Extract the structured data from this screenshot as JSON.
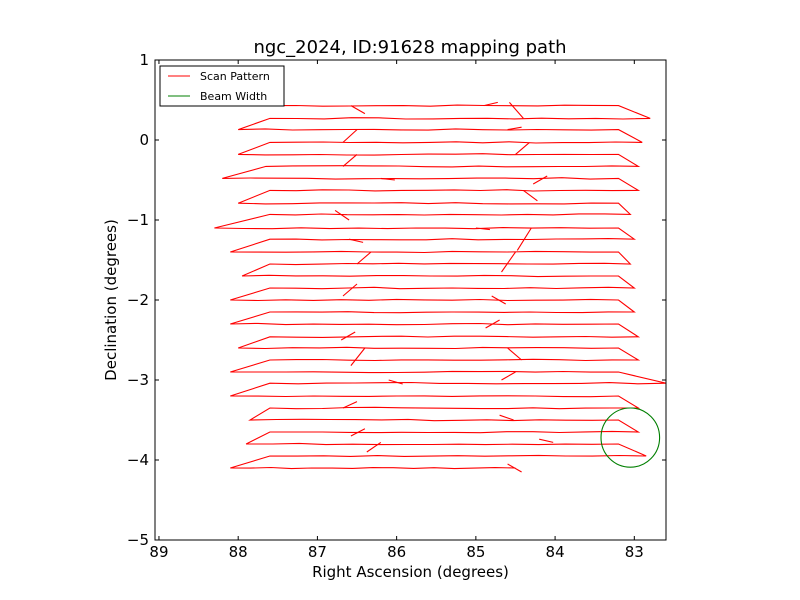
{
  "chart_data": {
    "type": "line",
    "title": "ngc_2024, ID:91628 mapping path",
    "xlabel": "Right Ascension (degrees)",
    "ylabel": "Declination (degrees)",
    "xlim": [
      89.05,
      82.6
    ],
    "ylim": [
      -5,
      1
    ],
    "x_inverted": true,
    "xticks": [
      89,
      88,
      87,
      86,
      85,
      84,
      83
    ],
    "yticks": [
      1,
      0,
      -1,
      -2,
      -3,
      -4,
      -5
    ],
    "ytick_labels": [
      "1",
      "0",
      "−1",
      "−2",
      "−3",
      "−4",
      "−5"
    ],
    "grid": false,
    "legend_position": "top-left",
    "series": [
      {
        "name": "Scan Pattern",
        "color": "#ff0000",
        "type": "line",
        "scan_rows": [
          {
            "dec": 0.43,
            "ra_start": 87.95,
            "ra_end": 83.2
          },
          {
            "dec": 0.27,
            "ra_start": 87.6,
            "ra_end": 82.8
          },
          {
            "dec": 0.13,
            "ra_start": 88.0,
            "ra_end": 83.2
          },
          {
            "dec": -0.03,
            "ra_start": 87.6,
            "ra_end": 82.9
          },
          {
            "dec": -0.18,
            "ra_start": 88.0,
            "ra_end": 83.2
          },
          {
            "dec": -0.33,
            "ra_start": 87.65,
            "ra_end": 82.95
          },
          {
            "dec": -0.48,
            "ra_start": 88.2,
            "ra_end": 83.2
          },
          {
            "dec": -0.63,
            "ra_start": 87.6,
            "ra_end": 82.95
          },
          {
            "dec": -0.79,
            "ra_start": 88.0,
            "ra_end": 83.2
          },
          {
            "dec": -0.93,
            "ra_start": 87.6,
            "ra_end": 83.05
          },
          {
            "dec": -1.1,
            "ra_start": 88.3,
            "ra_end": 83.2
          },
          {
            "dec": -1.24,
            "ra_start": 87.6,
            "ra_end": 83.0
          },
          {
            "dec": -1.4,
            "ra_start": 88.1,
            "ra_end": 83.2
          },
          {
            "dec": -1.55,
            "ra_start": 87.6,
            "ra_end": 83.05
          },
          {
            "dec": -1.7,
            "ra_start": 87.95,
            "ra_end": 83.2
          },
          {
            "dec": -1.85,
            "ra_start": 87.6,
            "ra_end": 83.0
          },
          {
            "dec": -2.0,
            "ra_start": 88.1,
            "ra_end": 83.2
          },
          {
            "dec": -2.15,
            "ra_start": 87.6,
            "ra_end": 83.0
          },
          {
            "dec": -2.3,
            "ra_start": 88.1,
            "ra_end": 83.2
          },
          {
            "dec": -2.46,
            "ra_start": 87.6,
            "ra_end": 82.95
          },
          {
            "dec": -2.6,
            "ra_start": 88.0,
            "ra_end": 83.2
          },
          {
            "dec": -2.75,
            "ra_start": 87.6,
            "ra_end": 82.95
          },
          {
            "dec": -2.9,
            "ra_start": 88.1,
            "ra_end": 83.2
          },
          {
            "dec": -3.04,
            "ra_start": 87.6,
            "ra_end": 82.6
          },
          {
            "dec": -3.2,
            "ra_start": 88.1,
            "ra_end": 83.2
          },
          {
            "dec": -3.35,
            "ra_start": 87.6,
            "ra_end": 82.95
          },
          {
            "dec": -3.5,
            "ra_start": 87.85,
            "ra_end": 83.2
          },
          {
            "dec": -3.65,
            "ra_start": 87.6,
            "ra_end": 82.95
          },
          {
            "dec": -3.8,
            "ra_start": 87.9,
            "ra_end": 83.2
          },
          {
            "dec": -3.95,
            "ra_start": 87.6,
            "ra_end": 82.85
          },
          {
            "dec": -4.1,
            "ra_start": 88.1,
            "ra_end": 84.5
          }
        ],
        "spikes": [
          {
            "ra": 86.4,
            "dec_from": 0.33,
            "dec_to": 0.43
          },
          {
            "ra": 84.9,
            "dec_from": 0.43,
            "dec_to": 0.47
          },
          {
            "ra": 84.4,
            "dec_from": 0.27,
            "dec_to": 0.47
          },
          {
            "ra": 84.6,
            "dec_from": 0.13,
            "dec_to": 0.16
          },
          {
            "ra": 86.5,
            "dec_from": 0.13,
            "dec_to": -0.03
          },
          {
            "ra": 84.5,
            "dec_from": -0.18,
            "dec_to": -0.03
          },
          {
            "ra": 86.5,
            "dec_from": -0.18,
            "dec_to": -0.33
          },
          {
            "ra": 86.2,
            "dec_from": -0.48,
            "dec_to": -0.5
          },
          {
            "ra": 84.1,
            "dec_from": -0.45,
            "dec_to": -0.55
          },
          {
            "ra": 84.4,
            "dec_from": -0.63,
            "dec_to": -0.76
          },
          {
            "ra": 86.6,
            "dec_from": -1.0,
            "dec_to": -0.88
          },
          {
            "ra": 85.0,
            "dec_from": -1.1,
            "dec_to": -1.12
          },
          {
            "ra": 84.3,
            "dec_from": -1.1,
            "dec_to": -1.38
          },
          {
            "ra": 86.6,
            "dec_from": -1.24,
            "dec_to": -1.28
          },
          {
            "ra": 84.5,
            "dec_from": -1.4,
            "dec_to": -1.65
          },
          {
            "ra": 86.5,
            "dec_from": -1.55,
            "dec_to": -1.4
          },
          {
            "ra": 86.5,
            "dec_from": -1.8,
            "dec_to": -1.95
          },
          {
            "ra": 84.8,
            "dec_from": -1.95,
            "dec_to": -2.05
          },
          {
            "ra": 84.7,
            "dec_from": -2.25,
            "dec_to": -2.35
          },
          {
            "ra": 86.7,
            "dec_from": -2.5,
            "dec_to": -2.4
          },
          {
            "ra": 86.4,
            "dec_from": -2.6,
            "dec_to": -2.82
          },
          {
            "ra": 84.6,
            "dec_from": -2.6,
            "dec_to": -2.75
          },
          {
            "ra": 84.5,
            "dec_from": -2.9,
            "dec_to": -3.0
          },
          {
            "ra": 86.1,
            "dec_from": -3.0,
            "dec_to": -3.05
          },
          {
            "ra": 86.5,
            "dec_from": -3.27,
            "dec_to": -3.35
          },
          {
            "ra": 84.7,
            "dec_from": -3.44,
            "dec_to": -3.5
          },
          {
            "ra": 86.4,
            "dec_from": -3.61,
            "dec_to": -3.7
          },
          {
            "ra": 84.2,
            "dec_from": -3.74,
            "dec_to": -3.78
          },
          {
            "ra": 86.2,
            "dec_from": -3.78,
            "dec_to": -3.9
          },
          {
            "ra": 84.6,
            "dec_from": -4.05,
            "dec_to": -4.15
          }
        ]
      },
      {
        "name": "Beam Width",
        "color": "#007f00",
        "type": "circle",
        "center": [
          83.05,
          -3.72
        ],
        "radius": 0.37
      }
    ]
  }
}
